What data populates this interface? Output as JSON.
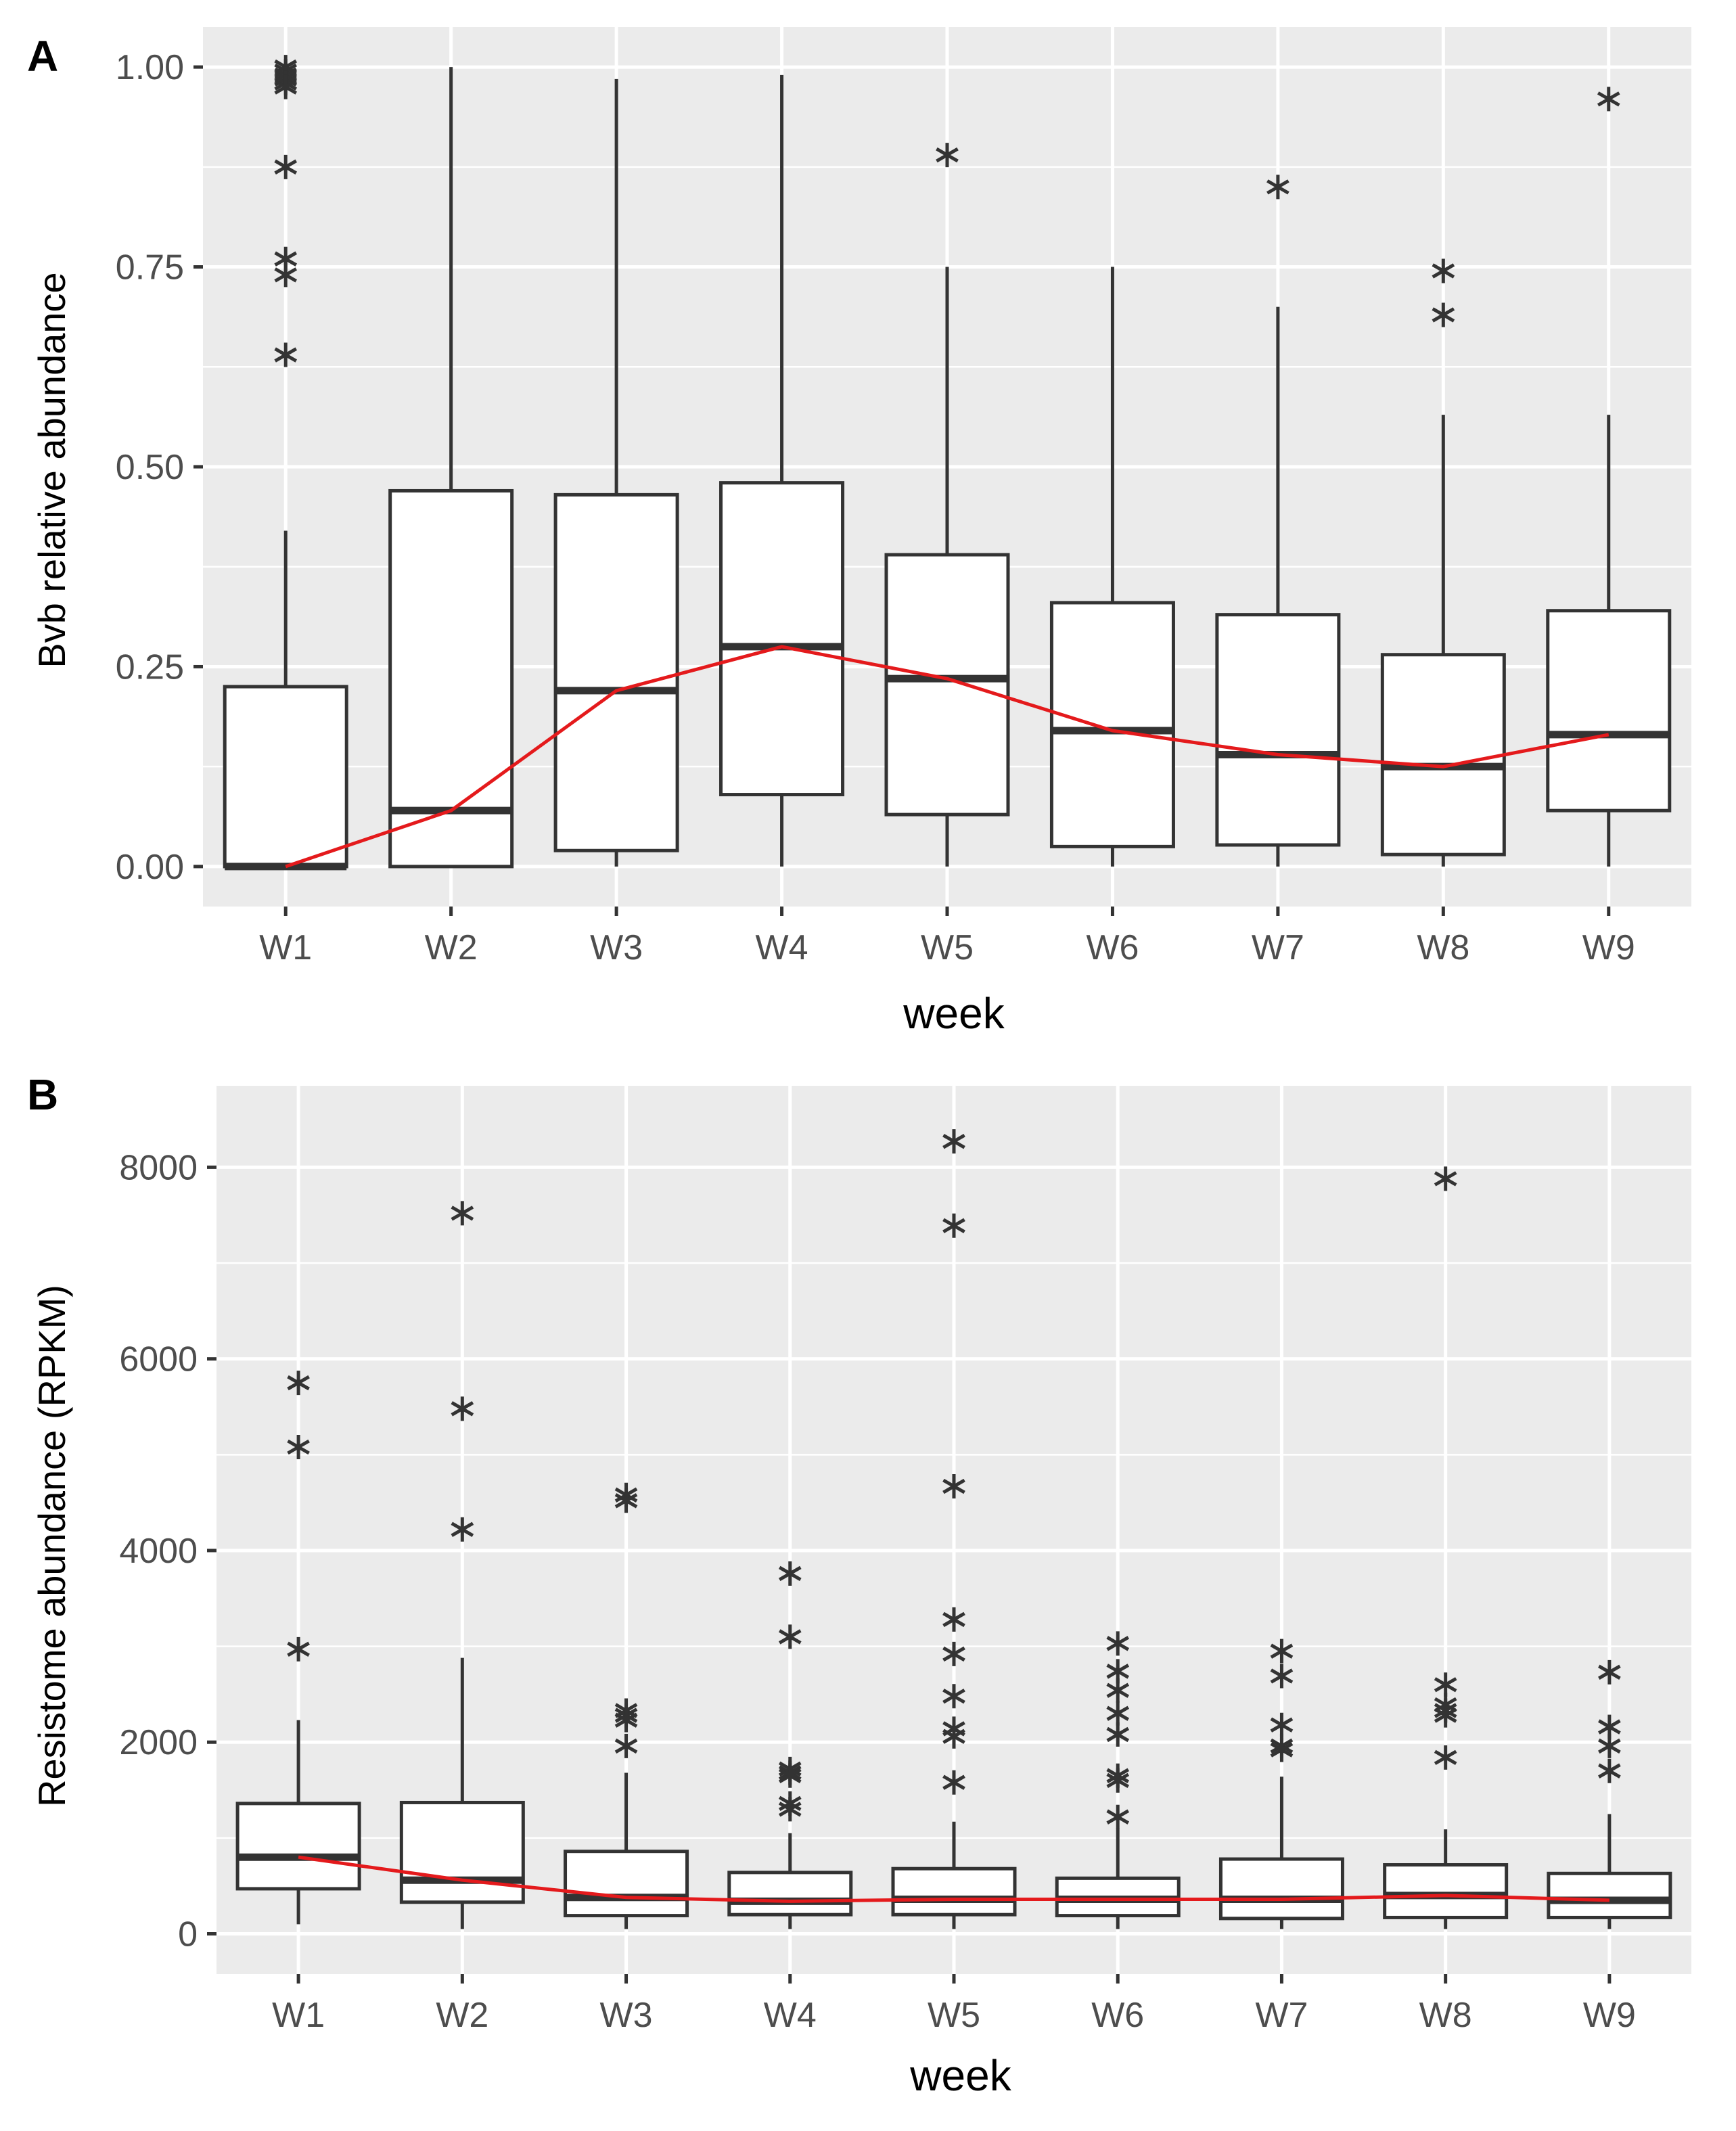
{
  "chart_data": [
    {
      "panel": "A",
      "type": "box",
      "xlabel": "week",
      "ylabel": "Bvb relative  abundance",
      "ylim": [
        -0.05,
        1.05
      ],
      "yticks": [
        0,
        0.25,
        0.5,
        0.75,
        1
      ],
      "ytick_labels": [
        "0.00",
        "0.25",
        "0.50",
        "0.75",
        "1.00"
      ],
      "grid": true,
      "categories": [
        "W1",
        "W2",
        "W3",
        "W4",
        "W5",
        "W6",
        "W7",
        "W8",
        "W9"
      ],
      "boxes": [
        {
          "q1": 0.0,
          "median": 0.0,
          "q3": 0.225,
          "whisker_low": 0.0,
          "whisker_high": 0.42,
          "outliers": [
            1.0,
            0.995,
            0.99,
            0.985,
            0.98,
            0.975,
            0.875,
            0.76,
            0.74,
            0.64
          ]
        },
        {
          "q1": 0.0,
          "median": 0.07,
          "q3": 0.47,
          "whisker_low": 0.0,
          "whisker_high": 1.0,
          "outliers": []
        },
        {
          "q1": 0.02,
          "median": 0.22,
          "q3": 0.465,
          "whisker_low": 0.0,
          "whisker_high": 0.985,
          "outliers": []
        },
        {
          "q1": 0.09,
          "median": 0.275,
          "q3": 0.48,
          "whisker_low": 0.0,
          "whisker_high": 0.99,
          "outliers": []
        },
        {
          "q1": 0.065,
          "median": 0.235,
          "q3": 0.39,
          "whisker_low": 0.0,
          "whisker_high": 0.75,
          "outliers": [
            0.89
          ]
        },
        {
          "q1": 0.025,
          "median": 0.17,
          "q3": 0.33,
          "whisker_low": 0.0,
          "whisker_high": 0.75,
          "outliers": []
        },
        {
          "q1": 0.027,
          "median": 0.14,
          "q3": 0.315,
          "whisker_low": 0.0,
          "whisker_high": 0.7,
          "outliers": [
            0.85
          ]
        },
        {
          "q1": 0.015,
          "median": 0.125,
          "q3": 0.265,
          "whisker_low": 0.0,
          "whisker_high": 0.565,
          "outliers": [
            0.745,
            0.69
          ]
        },
        {
          "q1": 0.07,
          "median": 0.165,
          "q3": 0.32,
          "whisker_low": 0.0,
          "whisker_high": 0.565,
          "outliers": [
            0.96
          ]
        }
      ],
      "trend_line": {
        "color": "#e41a1c",
        "values": [
          0.0,
          0.07,
          0.22,
          0.275,
          0.235,
          0.17,
          0.14,
          0.125,
          0.165
        ]
      }
    },
    {
      "panel": "B",
      "type": "box",
      "xlabel": "week",
      "ylabel": "Resistome abundance (RPKM)",
      "ylim": [
        -420,
        8850
      ],
      "yticks": [
        0,
        2000,
        4000,
        6000,
        8000
      ],
      "ytick_labels": [
        "0",
        "2000",
        "4000",
        "6000",
        "8000"
      ],
      "grid": true,
      "categories": [
        "W1",
        "W2",
        "W3",
        "W4",
        "W5",
        "W6",
        "W7",
        "W8",
        "W9"
      ],
      "boxes": [
        {
          "q1": 470,
          "median": 800,
          "q3": 1360,
          "whisker_low": 100,
          "whisker_high": 2230,
          "outliers": [
            5750,
            5080,
            2970
          ]
        },
        {
          "q1": 330,
          "median": 560,
          "q3": 1370,
          "whisker_low": 50,
          "whisker_high": 2880,
          "outliers": [
            7520,
            5480,
            4220
          ]
        },
        {
          "q1": 190,
          "median": 380,
          "q3": 860,
          "whisker_low": 50,
          "whisker_high": 1680,
          "outliers": [
            4580,
            4520,
            2330,
            2280,
            2230,
            1960
          ]
        },
        {
          "q1": 200,
          "median": 340,
          "q3": 640,
          "whisker_low": 50,
          "whisker_high": 1050,
          "outliers": [
            3760,
            3100,
            1720,
            1680,
            1650,
            1360,
            1300
          ]
        },
        {
          "q1": 200,
          "median": 360,
          "q3": 680,
          "whisker_low": 50,
          "whisker_high": 1170,
          "outliers": [
            8270,
            7390,
            4670,
            3280,
            2920,
            2480,
            2140,
            2060,
            1580
          ]
        },
        {
          "q1": 190,
          "median": 360,
          "q3": 580,
          "whisker_low": 50,
          "whisker_high": 1100,
          "outliers": [
            3030,
            2740,
            2540,
            2300,
            2080,
            1650,
            1600,
            1220
          ]
        },
        {
          "q1": 160,
          "median": 360,
          "q3": 780,
          "whisker_low": 50,
          "whisker_high": 1640,
          "outliers": [
            2950,
            2690,
            2180,
            1960,
            1920
          ]
        },
        {
          "q1": 170,
          "median": 400,
          "q3": 720,
          "whisker_low": 50,
          "whisker_high": 1090,
          "outliers": [
            7880,
            2600,
            2390,
            2330,
            2280,
            1840
          ]
        },
        {
          "q1": 170,
          "median": 350,
          "q3": 630,
          "whisker_low": 50,
          "whisker_high": 1250,
          "outliers": [
            2730,
            2160,
            1960,
            1700
          ]
        }
      ],
      "trend_line": {
        "color": "#e41a1c",
        "values": [
          800,
          560,
          380,
          340,
          360,
          360,
          360,
          400,
          350
        ]
      }
    }
  ]
}
